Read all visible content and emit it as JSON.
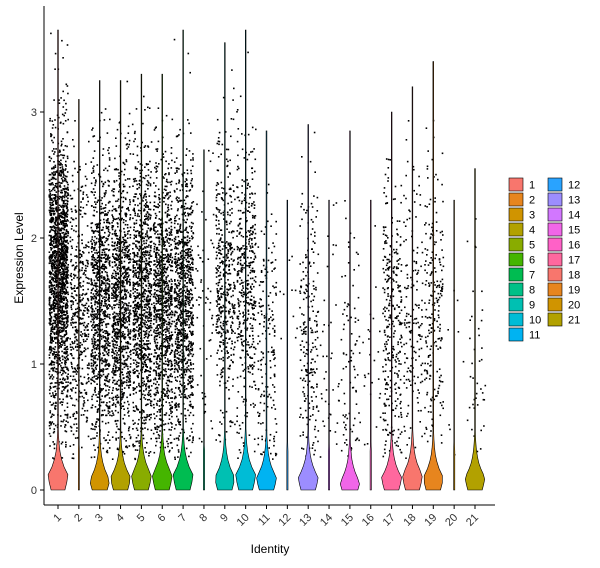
{
  "chart_data": {
    "type": "violin",
    "xlabel": "Identity",
    "ylabel": "Expression Level",
    "ylim": [
      -0.2,
      3.7
    ],
    "yticks": [
      0,
      1,
      2,
      3
    ],
    "categories": [
      "1",
      "2",
      "3",
      "4",
      "5",
      "6",
      "7",
      "8",
      "9",
      "10",
      "11",
      "12",
      "13",
      "14",
      "15",
      "16",
      "17",
      "18",
      "19",
      "20",
      "21"
    ],
    "colors": [
      "#F8766D",
      "#E7851E",
      "#D09400",
      "#B2A100",
      "#89AC00",
      "#45B500",
      "#00BC51",
      "#00C087",
      "#00C0B2",
      "#00BCD6",
      "#00B3F2",
      "#29A3FF",
      "#9C8DFF",
      "#D277FF",
      "#F166E8",
      "#FF61C7",
      "#FF689E",
      "#F8766D",
      "#E7851E",
      "#D09400",
      "#B2A100"
    ],
    "violin_peak": [
      0.12,
      0.01,
      0.08,
      0.1,
      0.12,
      0.12,
      0.12,
      0.01,
      0.1,
      0.12,
      0.1,
      0.01,
      0.1,
      0.01,
      0.06,
      0.01,
      0.1,
      0.12,
      0.1,
      0.01,
      0.1
    ],
    "violin_max": [
      3.65,
      3.1,
      3.25,
      3.25,
      3.3,
      3.3,
      3.65,
      2.7,
      3.55,
      3.65,
      2.85,
      2.3,
      2.9,
      2.3,
      2.85,
      2.3,
      3.0,
      3.2,
      3.4,
      2.3,
      2.55
    ],
    "point_density": [
      1800,
      450,
      950,
      950,
      1000,
      1000,
      950,
      60,
      450,
      450,
      180,
      10,
      220,
      40,
      90,
      25,
      320,
      160,
      220,
      8,
      40
    ],
    "point_center": [
      1.7,
      1.4,
      1.5,
      1.5,
      1.5,
      1.5,
      1.5,
      1.4,
      1.7,
      1.6,
      1.1,
      1.2,
      1.3,
      1.0,
      1.0,
      1.0,
      1.3,
      1.4,
      1.5,
      1.0,
      1.0
    ],
    "legend": {
      "placement": "right",
      "entries": [
        "1",
        "2",
        "3",
        "4",
        "5",
        "6",
        "7",
        "8",
        "9",
        "10",
        "11",
        "12",
        "13",
        "14",
        "15",
        "16",
        "17",
        "18",
        "19",
        "20",
        "21"
      ]
    },
    "grid": false
  }
}
